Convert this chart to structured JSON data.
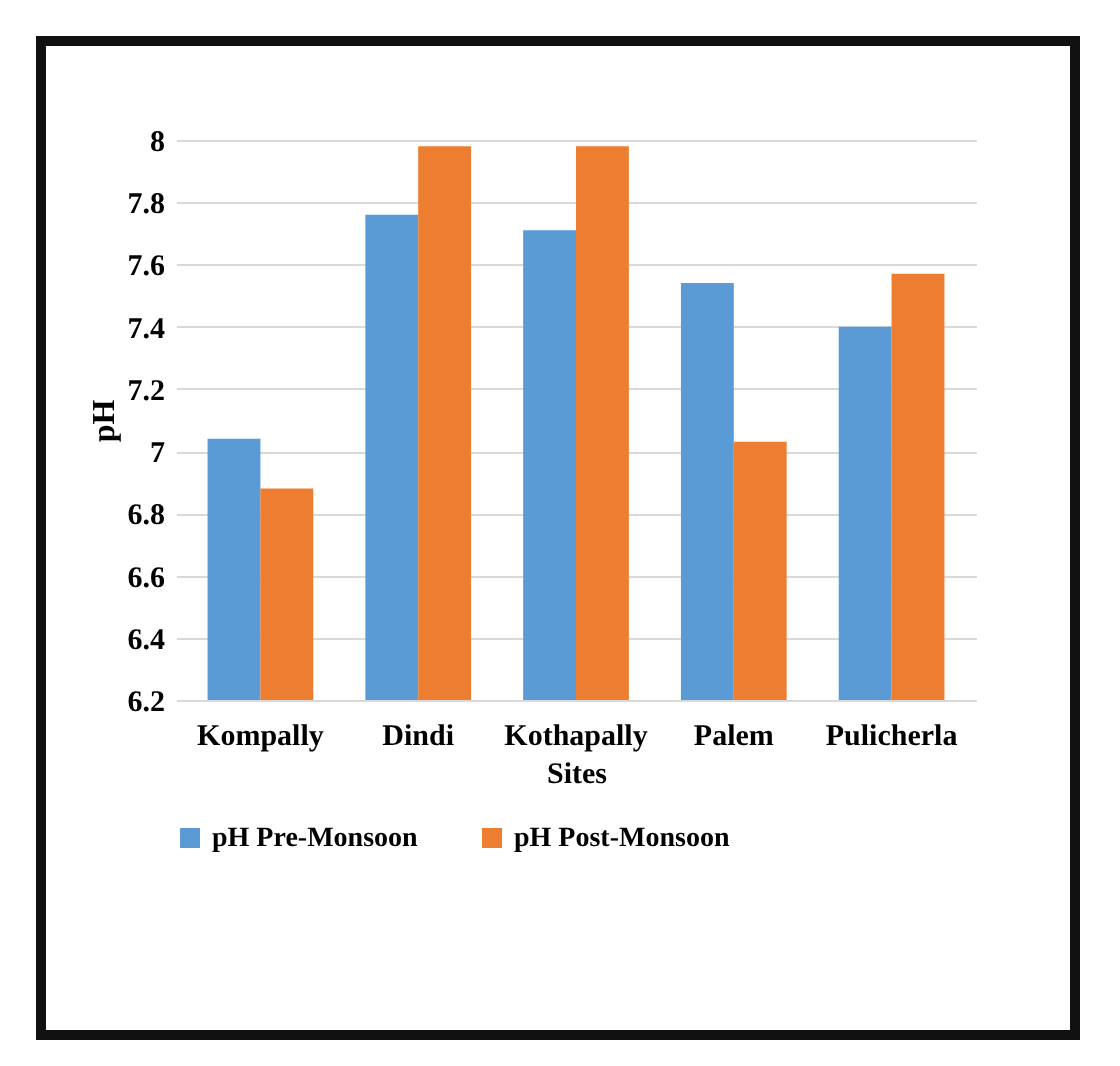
{
  "chart_data": {
    "type": "bar",
    "xlabel": "Sites",
    "ylabel": "pH",
    "categories": [
      "Kompally",
      "Dindi",
      "Kothapally",
      "Palem",
      "Pulicherla"
    ],
    "series": [
      {
        "name": "pH Pre-Monsoon",
        "color": "#5b9bd5",
        "values": [
          7.04,
          7.76,
          7.71,
          7.54,
          7.4
        ]
      },
      {
        "name": "pH Post-Monsoon",
        "color": "#ed7d31",
        "values": [
          6.88,
          7.98,
          7.98,
          7.03,
          7.57
        ]
      }
    ],
    "ylim": [
      6.2,
      8
    ],
    "yticks": [
      6.2,
      6.4,
      6.6,
      6.8,
      7,
      7.2,
      7.4,
      7.6,
      7.8,
      8
    ],
    "grid": "y",
    "legend": "bottom"
  }
}
